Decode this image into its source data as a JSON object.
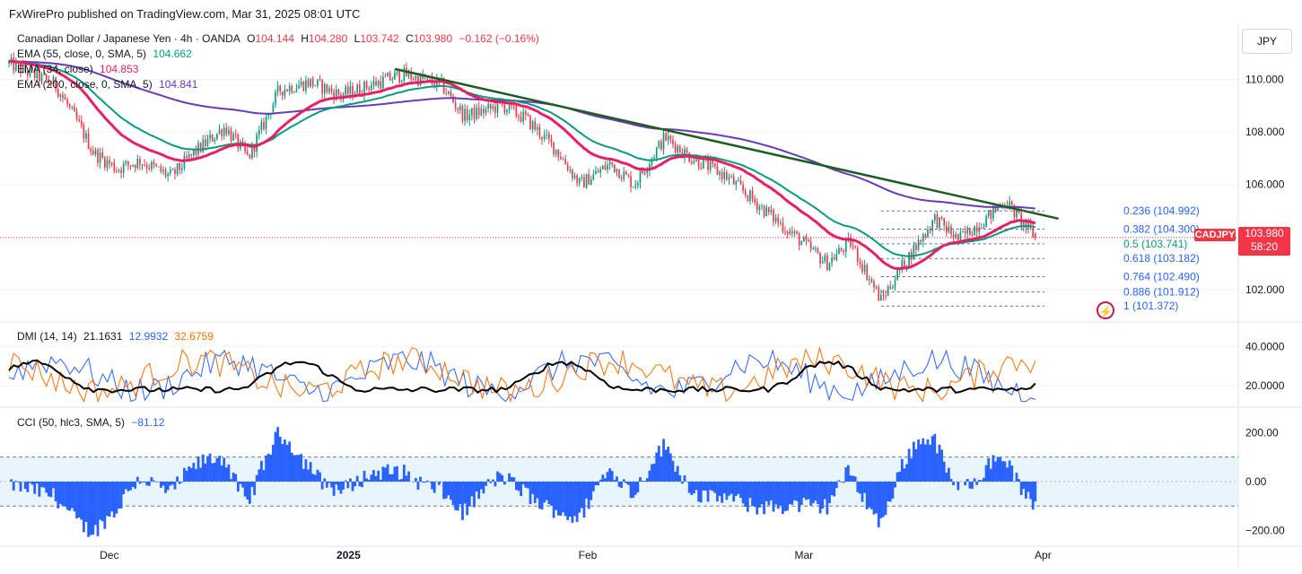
{
  "header": {
    "published": "FxWirePro published on TradingView.com, Mar 31, 2025 08:01 UTC"
  },
  "legend": {
    "symbol": "Canadian Dollar / Japanese Yen · 4h · OANDA",
    "o_label": "O",
    "o": "104.144",
    "h_label": "H",
    "h": "104.280",
    "l_label": "L",
    "l": "103.742",
    "c_label": "C",
    "c": "103.980",
    "change": "−0.162 (−0.16%)",
    "ema55_label": "EMA (55, close, 0, SMA, 5)",
    "ema55_value": "104.662",
    "ema34_label": "EMA (34, close)",
    "ema34_value": "104.853",
    "ema200_label": "EMA (200, close, 0, SMA, 5)",
    "ema200_value": "104.841",
    "dmi_label": "DMI (14, 14)",
    "dmi_adx": "21.1631",
    "dmi_plus": "12.9932",
    "dmi_minus": "32.6759",
    "cci_label": "CCI (50, hlc3, SMA, 5)",
    "cci_value": "−81.12"
  },
  "currency_button": "JPY",
  "price_marker": {
    "symbol": "CADJPY",
    "price": "103.980",
    "countdown": "58:20"
  },
  "colors": {
    "ema55": "#089981",
    "ema34": "#e91e63",
    "ema200": "#673ab7",
    "up": "#089981",
    "down": "#f23645",
    "trendline": "#1b5e20",
    "adx": "#000000",
    "di_plus": "#2962ff",
    "di_minus": "#ff6d00",
    "cci": "#2962ff",
    "fib": "#2962ff"
  },
  "chart_data": [
    {
      "type": "candlestick",
      "title": "Canadian Dollar / Japanese Yen · 4h · OANDA",
      "ylim": [
        100.8,
        112.0
      ],
      "y_ticks": [
        "110.000",
        "108.000",
        "106.000",
        "102.000"
      ],
      "x_ticks": [
        "Dec",
        "2025",
        "Feb",
        "Mar",
        "Apr"
      ],
      "close_path": [
        [
          "Nov 18",
          110.6
        ],
        [
          "Nov 21",
          110.2
        ],
        [
          "Nov 24",
          109.8
        ],
        [
          "Nov 27",
          108.3
        ],
        [
          "Nov 29",
          107.2
        ],
        [
          "Dec 2",
          106.6
        ],
        [
          "Dec 5",
          106.9
        ],
        [
          "Dec 9",
          106.3
        ],
        [
          "Dec 12",
          107.2
        ],
        [
          "Dec 16",
          108.2
        ],
        [
          "Dec 19",
          107.0
        ],
        [
          "Dec 23",
          109.6
        ],
        [
          "Dec 27",
          109.9
        ],
        [
          "Dec 31",
          109.4
        ],
        [
          "Jan 3",
          109.7
        ],
        [
          "Jan 8",
          110.2
        ],
        [
          "Jan 13",
          109.8
        ],
        [
          "Jan 16",
          108.6
        ],
        [
          "Jan 21",
          109.0
        ],
        [
          "Jan 24",
          108.5
        ],
        [
          "Jan 28",
          107.3
        ],
        [
          "Jan 31",
          106.0
        ],
        [
          "Feb 4",
          106.8
        ],
        [
          "Feb 7",
          106.0
        ],
        [
          "Feb 11",
          107.8
        ],
        [
          "Feb 14",
          107.1
        ],
        [
          "Feb 19",
          106.3
        ],
        [
          "Feb 24",
          105.0
        ],
        [
          "Feb 28",
          104.0
        ],
        [
          "Mar 4",
          103.0
        ],
        [
          "Mar 7",
          103.8
        ],
        [
          "Mar 11",
          101.6
        ],
        [
          "Mar 14",
          103.0
        ],
        [
          "Mar 18",
          104.7
        ],
        [
          "Mar 21",
          103.9
        ],
        [
          "Mar 25",
          104.8
        ],
        [
          "Mar 27",
          105.4
        ],
        [
          "Mar 31",
          103.98
        ]
      ],
      "series": [
        {
          "name": "EMA (55, close, 0, SMA, 5)",
          "last": 104.662
        },
        {
          "name": "EMA (34, close)",
          "last": 104.853
        },
        {
          "name": "EMA (200, close, 0, SMA, 5)",
          "last": 104.841
        }
      ],
      "trendline": {
        "from": [
          "Jan 7",
          110.4
        ],
        "to": [
          "Apr 3",
          104.7
        ]
      },
      "fibonacci": [
        {
          "level": "0.236",
          "price": "104.992"
        },
        {
          "level": "0.382",
          "price": "104.300"
        },
        {
          "level": "0.5",
          "price": "103.741"
        },
        {
          "level": "0.618",
          "price": "103.182"
        },
        {
          "level": "0.764",
          "price": "102.490"
        },
        {
          "level": "0.886",
          "price": "101.912"
        },
        {
          "level": "1",
          "price": "101.372"
        }
      ],
      "last_price": 103.98
    },
    {
      "type": "line",
      "title": "DMI (14, 14)",
      "ylim": [
        10,
        52
      ],
      "y_ticks": [
        "40.0000",
        "20.0000"
      ],
      "series": [
        {
          "name": "ADX",
          "last": 21.1631
        },
        {
          "name": "+DI",
          "last": 12.9932
        },
        {
          "name": "−DI",
          "last": 32.6759
        }
      ]
    },
    {
      "type": "bar",
      "title": "CCI (50, hlc3, SMA, 5)",
      "ylim": [
        -260,
        300
      ],
      "y_ticks": [
        "200.00",
        "0.00",
        "−200.00"
      ],
      "bands": [
        100,
        -100
      ],
      "last": -81.12
    }
  ]
}
